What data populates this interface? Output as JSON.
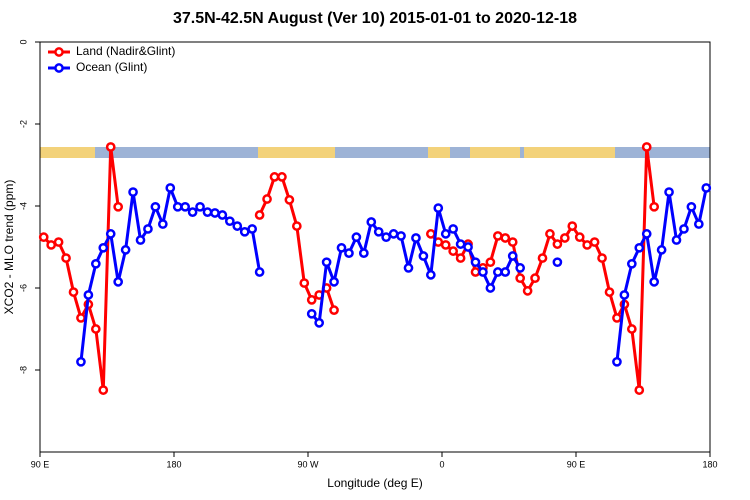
{
  "chart_data": {
    "type": "line",
    "title": "37.5N-42.5N August (Ver 10)   2015-01-01 to 2020-12-18",
    "x_label": "Longitude (deg E)",
    "y_label": "XCO2 - MLO trend (ppm)",
    "xlim": [
      90,
      540
    ],
    "ylim": [
      -10,
      0
    ],
    "xticks": [
      {
        "value": 90,
        "label": "90 E"
      },
      180,
      {
        "value": 270,
        "label": "90 W"
      },
      {
        "value": 360,
        "label": "0"
      },
      {
        "value": 450,
        "label": "90 E"
      },
      {
        "value": 540,
        "label": "180"
      }
    ],
    "yticks": [
      0,
      -2,
      -4,
      -6,
      -8
    ],
    "legend": "top-left",
    "x": [
      92.5,
      97.5,
      102.5,
      107.5,
      112.5,
      117.5,
      122.5,
      127.5,
      132.5,
      137.5,
      142.5,
      147.5,
      152.5,
      157.5,
      162.5,
      167.5,
      172.5,
      177.5,
      182.5,
      187.5,
      192.5,
      197.5,
      202.5,
      207.5,
      212.5,
      217.5,
      222.5,
      227.5,
      232.5,
      237.5,
      242.5,
      247.5,
      252.5,
      257.5,
      262.5,
      267.5,
      272.5,
      277.5,
      282.5,
      287.5,
      292.5,
      297.5,
      302.5,
      307.5,
      312.5,
      317.5,
      322.5,
      327.5,
      332.5,
      337.5,
      342.5,
      347.5,
      352.5,
      357.5,
      362.5,
      367.5,
      372.5,
      377.5,
      382.5,
      387.5,
      392.5,
      397.5,
      402.5,
      407.5,
      412.5,
      417.5,
      422.5,
      427.5,
      432.5,
      437.5,
      442.5,
      447.5,
      452.5,
      457.5,
      462.5,
      467.5,
      472.5,
      477.5,
      482.5,
      487.5,
      492.5,
      497.5,
      502.5,
      507.5,
      512.5,
      517.5,
      522.5,
      527.5,
      532.5,
      537.5
    ],
    "series": [
      {
        "name": "Land (Nadir&Glint)",
        "color": "#ff0000",
        "values": [
          -4.76,
          -4.95,
          -4.88,
          -5.27,
          -6.1,
          -6.73,
          -6.4,
          -7.0,
          -8.49,
          -2.56,
          -4.02,
          null,
          null,
          null,
          null,
          null,
          null,
          null,
          null,
          null,
          null,
          null,
          null,
          null,
          null,
          null,
          null,
          null,
          null,
          -4.22,
          -3.83,
          -3.29,
          -3.29,
          -3.85,
          -4.49,
          -5.88,
          -6.29,
          -6.17,
          -6.0,
          -6.54,
          null,
          null,
          null,
          null,
          null,
          null,
          null,
          null,
          null,
          null,
          null,
          null,
          -4.68,
          -4.88,
          -4.95,
          -5.1,
          -5.27,
          -4.93,
          -5.61,
          -5.51,
          -5.37,
          -4.73,
          -4.78,
          -4.88,
          -5.76,
          -6.07,
          -5.76,
          -5.27,
          -4.68,
          -4.93,
          -4.78,
          -4.49,
          -4.76,
          -4.95,
          -4.88,
          -5.27,
          -6.1,
          -6.73,
          -6.4,
          -7.0,
          -8.49,
          -2.56,
          -4.02,
          null,
          null,
          null,
          null,
          null,
          null,
          null
        ]
      },
      {
        "name": "Ocean (Glint)",
        "color": "#0000ff",
        "values": [
          null,
          null,
          null,
          null,
          null,
          -7.8,
          -6.17,
          -5.41,
          -5.02,
          -4.68,
          -5.85,
          -5.07,
          -3.66,
          -4.83,
          -4.56,
          -4.02,
          -4.44,
          -3.56,
          -4.02,
          -4.02,
          -4.15,
          -4.02,
          -4.15,
          -4.17,
          -4.22,
          -4.37,
          -4.49,
          -4.63,
          -4.56,
          -5.61,
          null,
          null,
          null,
          null,
          null,
          null,
          -6.63,
          -6.85,
          -5.37,
          -5.85,
          -5.02,
          -5.15,
          -4.76,
          -5.15,
          -4.39,
          -4.63,
          -4.76,
          -4.68,
          -4.73,
          -5.51,
          -4.78,
          -5.22,
          -5.68,
          -4.05,
          -4.68,
          -4.56,
          -4.93,
          -5.0,
          -5.37,
          -5.61,
          -6.0,
          -5.61,
          -5.61,
          -5.22,
          -5.51,
          null,
          null,
          null,
          null,
          -5.37,
          null,
          null,
          null,
          null,
          null,
          null,
          null,
          -7.8,
          -6.17,
          -5.41,
          -5.02,
          -4.68,
          -5.85,
          -5.07,
          -3.66,
          -4.83,
          -4.56,
          -4.02,
          -4.44,
          -3.56
        ]
      }
    ]
  }
}
